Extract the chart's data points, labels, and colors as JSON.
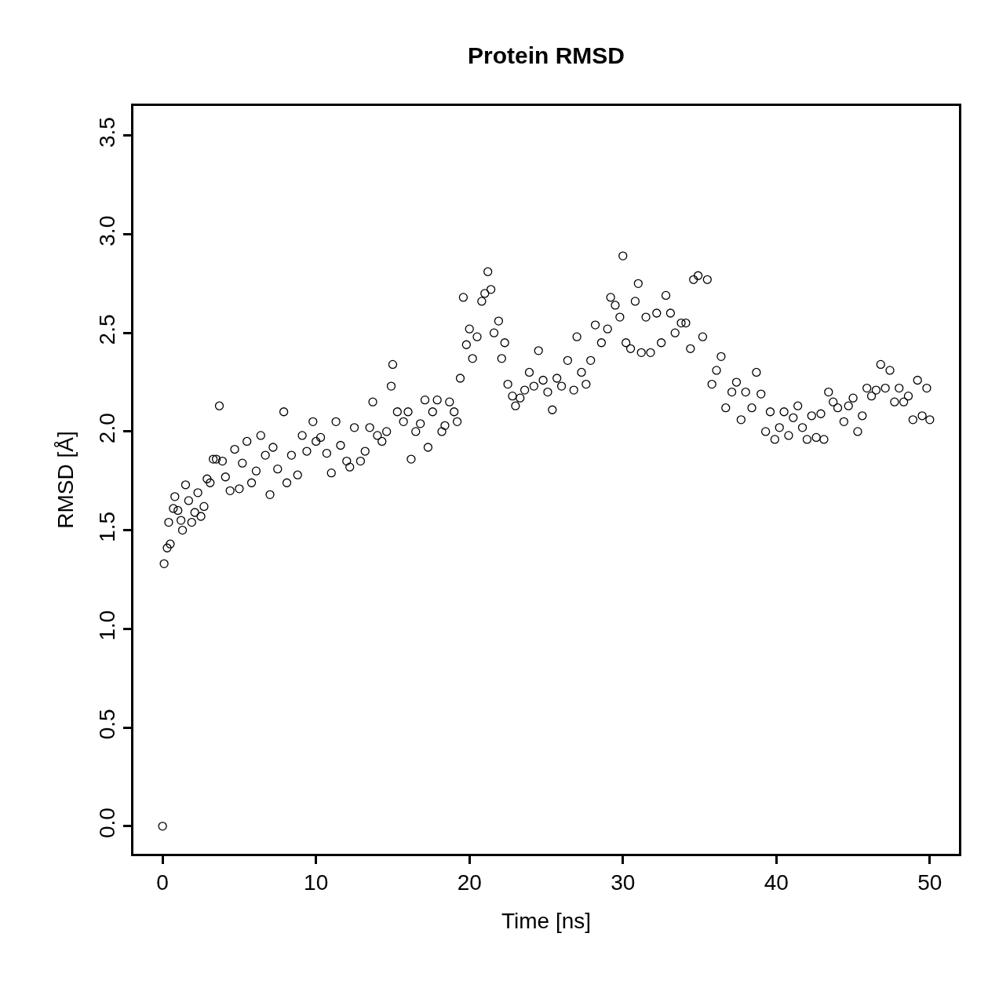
{
  "chart_data": {
    "type": "scatter",
    "title": "Protein RMSD",
    "xlabel": "Time [ns]",
    "ylabel": "RMSD [Å]",
    "xlim": [
      -1.9,
      51.9
    ],
    "ylim": [
      -0.14,
      3.65
    ],
    "xticks": [
      0,
      10,
      20,
      30,
      40,
      50
    ],
    "yticks": [
      {
        "value": 0,
        "label": "0.0"
      },
      {
        "value": 0.5,
        "label": "0.5"
      },
      {
        "value": 1,
        "label": "1.0"
      },
      {
        "value": 1.5,
        "label": "1.5"
      },
      {
        "value": 2,
        "label": "2.0"
      },
      {
        "value": 2.5,
        "label": "2.5"
      },
      {
        "value": 3,
        "label": "3.0"
      },
      {
        "value": 3.5,
        "label": "3.5"
      }
    ],
    "marker": "circle",
    "series": [
      {
        "color": "#000000",
        "x": [
          0.0,
          0.1,
          0.3,
          0.4,
          0.5,
          0.7,
          0.8,
          1.0,
          1.2,
          1.3,
          1.5,
          1.7,
          1.9,
          2.1,
          2.3,
          2.5,
          2.7,
          2.9,
          3.1,
          3.3,
          3.5,
          3.7,
          3.9,
          4.1,
          4.4,
          4.7,
          5.0,
          5.2,
          5.5,
          5.8,
          6.1,
          6.4,
          6.7,
          7.0,
          7.2,
          7.5,
          7.9,
          8.1,
          8.4,
          8.8,
          9.1,
          9.4,
          9.8,
          10.0,
          10.3,
          10.7,
          11.0,
          11.3,
          11.6,
          12.0,
          12.2,
          12.5,
          12.9,
          13.2,
          13.5,
          13.7,
          14.0,
          14.3,
          14.6,
          14.9,
          15.0,
          15.3,
          15.7,
          16.0,
          16.2,
          16.5,
          16.8,
          17.1,
          17.3,
          17.6,
          17.9,
          18.2,
          18.4,
          18.7,
          19.0,
          19.2,
          19.4,
          19.6,
          19.8,
          20.0,
          20.2,
          20.5,
          20.8,
          21.0,
          21.2,
          21.4,
          21.6,
          21.9,
          22.1,
          22.3,
          22.5,
          22.8,
          23.0,
          23.3,
          23.6,
          23.9,
          24.2,
          24.5,
          24.8,
          25.1,
          25.4,
          25.7,
          26.0,
          26.4,
          26.8,
          27.0,
          27.3,
          27.6,
          27.9,
          28.2,
          28.6,
          29.0,
          29.2,
          29.5,
          29.8,
          30.0,
          30.2,
          30.5,
          30.8,
          31.0,
          31.2,
          31.5,
          31.8,
          32.2,
          32.5,
          32.8,
          33.1,
          33.4,
          33.8,
          34.1,
          34.4,
          34.6,
          34.9,
          35.2,
          35.5,
          35.8,
          36.1,
          36.4,
          36.7,
          37.1,
          37.4,
          37.7,
          38.0,
          38.4,
          38.7,
          39.0,
          39.3,
          39.6,
          39.9,
          40.2,
          40.5,
          40.8,
          41.1,
          41.4,
          41.7,
          42.0,
          42.3,
          42.6,
          42.9,
          43.1,
          43.4,
          43.7,
          44.0,
          44.4,
          44.7,
          45.0,
          45.3,
          45.6,
          45.9,
          46.2,
          46.5,
          46.8,
          47.1,
          47.4,
          47.7,
          48.0,
          48.3,
          48.6,
          48.9,
          49.2,
          49.5,
          49.8,
          50.0
        ],
        "values": [
          0.0,
          1.33,
          1.41,
          1.54,
          1.43,
          1.61,
          1.67,
          1.6,
          1.55,
          1.5,
          1.73,
          1.65,
          1.54,
          1.59,
          1.69,
          1.57,
          1.62,
          1.76,
          1.74,
          1.86,
          1.86,
          2.13,
          1.85,
          1.77,
          1.7,
          1.91,
          1.71,
          1.84,
          1.95,
          1.74,
          1.8,
          1.98,
          1.88,
          1.68,
          1.92,
          1.81,
          2.1,
          1.74,
          1.88,
          1.78,
          1.98,
          1.9,
          2.05,
          1.95,
          1.97,
          1.89,
          1.79,
          2.05,
          1.93,
          1.85,
          1.82,
          2.02,
          1.85,
          1.9,
          2.02,
          2.15,
          1.98,
          1.95,
          2.0,
          2.23,
          2.34,
          2.1,
          2.05,
          2.1,
          1.86,
          2.0,
          2.04,
          2.16,
          1.92,
          2.1,
          2.16,
          2.0,
          2.03,
          2.15,
          2.1,
          2.05,
          2.27,
          2.68,
          2.44,
          2.52,
          2.37,
          2.48,
          2.66,
          2.7,
          2.81,
          2.72,
          2.5,
          2.56,
          2.37,
          2.45,
          2.24,
          2.18,
          2.13,
          2.17,
          2.21,
          2.3,
          2.23,
          2.41,
          2.26,
          2.2,
          2.11,
          2.27,
          2.23,
          2.36,
          2.21,
          2.48,
          2.3,
          2.24,
          2.36,
          2.54,
          2.45,
          2.52,
          2.68,
          2.64,
          2.58,
          2.89,
          2.45,
          2.42,
          2.66,
          2.75,
          2.4,
          2.58,
          2.4,
          2.6,
          2.45,
          2.69,
          2.6,
          2.5,
          2.55,
          2.55,
          2.42,
          2.77,
          2.79,
          2.48,
          2.77,
          2.24,
          2.31,
          2.38,
          2.12,
          2.2,
          2.25,
          2.06,
          2.2,
          2.12,
          2.3,
          2.19,
          2.0,
          2.1,
          1.96,
          2.02,
          2.1,
          1.98,
          2.07,
          2.13,
          2.02,
          1.96,
          2.08,
          1.97,
          2.09,
          1.96,
          2.2,
          2.15,
          2.12,
          2.05,
          2.13,
          2.17,
          2.0,
          2.08,
          2.22,
          2.18,
          2.21,
          2.34,
          2.22,
          2.31,
          2.15,
          2.22,
          2.15,
          2.18,
          2.06,
          2.26,
          2.08,
          2.22,
          2.06
        ]
      }
    ]
  }
}
